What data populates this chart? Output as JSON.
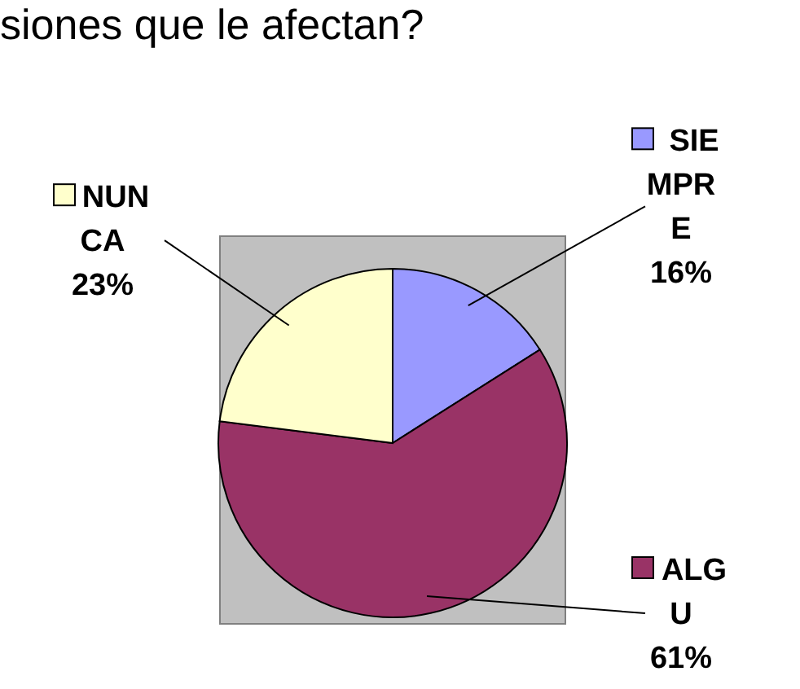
{
  "chart_data": {
    "type": "pie",
    "title": "siones que le afectan?",
    "categories": [
      "SIEMPRE",
      "ALGU",
      "NUNCA"
    ],
    "values": [
      16,
      61,
      23
    ],
    "value_labels": [
      "16%",
      "61%",
      "23%"
    ],
    "colors": [
      "#9999ff",
      "#993366",
      "#ffffcc"
    ],
    "legend": "right"
  }
}
